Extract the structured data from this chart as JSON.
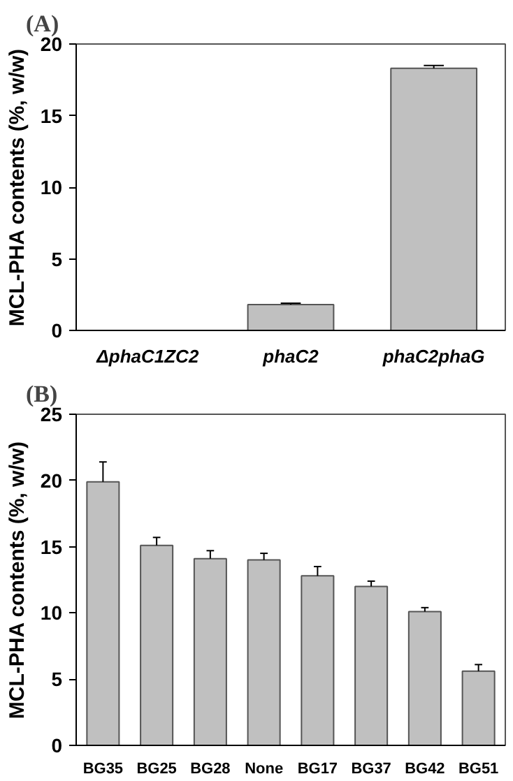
{
  "chart_data": [
    {
      "type": "bar",
      "title": "(A)",
      "ylabel": "MCL-PHA contents (%, w/w)",
      "categories": [
        "ΔphaC1ZC2",
        "phaC2",
        "phaC2phaG"
      ],
      "values": [
        0,
        1.8,
        18.3
      ],
      "errors": [
        null,
        [
          1.8,
          1.9
        ],
        [
          18.3,
          18.5
        ]
      ],
      "color": "#c0c0c0",
      "ylim": [
        0,
        20
      ],
      "yticks": [
        0,
        5,
        10,
        15,
        20
      ],
      "grid": false,
      "legend": false
    },
    {
      "type": "bar",
      "title": "(B)",
      "ylabel": "MCL-PHA contents (%, w/w)",
      "categories": [
        "BG35",
        "BG25",
        "BG28",
        "None",
        "BG17",
        "BG37",
        "BG42",
        "BG51"
      ],
      "values": [
        19.9,
        15.1,
        14.1,
        14.0,
        12.8,
        12.0,
        10.1,
        5.6
      ],
      "errors": [
        [
          19.9,
          21.4
        ],
        [
          15.1,
          15.7
        ],
        [
          14.1,
          14.7
        ],
        [
          14.0,
          14.5
        ],
        [
          12.8,
          13.5
        ],
        [
          12.0,
          12.4
        ],
        [
          10.1,
          10.4
        ],
        [
          5.6,
          6.1
        ]
      ],
      "color": "#c0c0c0",
      "ylim": [
        0,
        25
      ],
      "yticks": [
        0,
        5,
        10,
        15,
        20,
        25
      ],
      "grid": false,
      "legend": false
    }
  ]
}
